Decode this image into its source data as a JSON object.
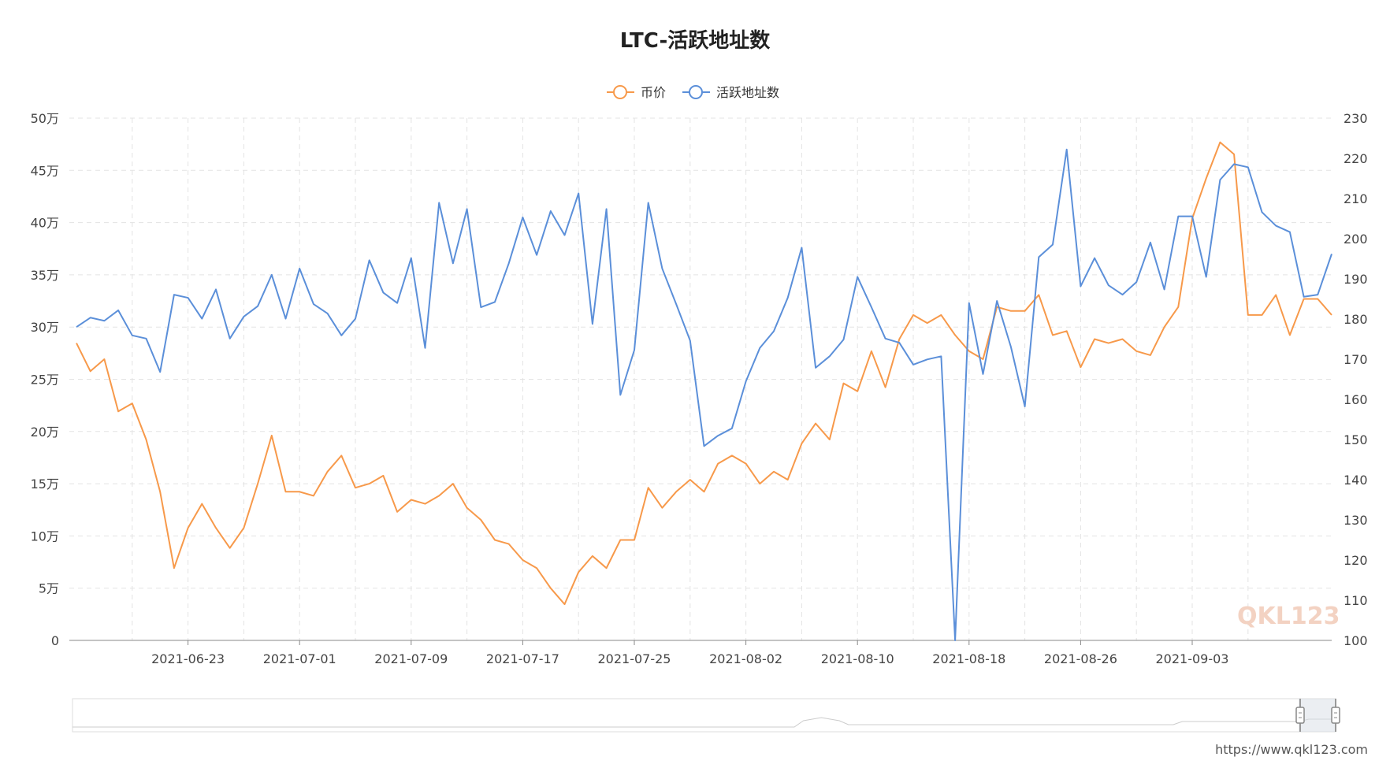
{
  "source_url": "https://www.qkl123.com",
  "watermark": "QKL123",
  "chart_data": {
    "type": "line",
    "title": "LTC-活跃地址数",
    "x_tick_labels": [
      "2021-06-23",
      "2021-07-01",
      "2021-07-09",
      "2021-07-17",
      "2021-07-25",
      "2021-08-02",
      "2021-08-10",
      "2021-08-18",
      "2021-08-26",
      "2021-09-03"
    ],
    "y_left_ticks": [
      "0",
      "5万",
      "10万",
      "15万",
      "20万",
      "25万",
      "30万",
      "35万",
      "40万",
      "45万",
      "50万"
    ],
    "y_right_ticks": [
      "100",
      "110",
      "120",
      "130",
      "140",
      "150",
      "160",
      "170",
      "180",
      "190",
      "200",
      "210",
      "220",
      "230"
    ],
    "y_left_range": [
      0,
      500000
    ],
    "y_right_range": [
      100,
      230
    ],
    "grid": true,
    "legend_position": "top-center",
    "series": [
      {
        "name": "币价",
        "axis": "right",
        "color": "#f7994a",
        "values": [
          174,
          167,
          170,
          157,
          159,
          150,
          137,
          118,
          128,
          134,
          128,
          123,
          128,
          139,
          151,
          137,
          137,
          136,
          142,
          146,
          138,
          139,
          141,
          132,
          135,
          134,
          136,
          139,
          133,
          130,
          125,
          124,
          120,
          118,
          113,
          109,
          117,
          121,
          118,
          125,
          125,
          138,
          133,
          137,
          140,
          137,
          144,
          146,
          144,
          139,
          142,
          140,
          149,
          154,
          150,
          164,
          162,
          172,
          163,
          175,
          181,
          179,
          181,
          176,
          172,
          170,
          183,
          182,
          182,
          186,
          176,
          177,
          168,
          175,
          174,
          175,
          172,
          171,
          178,
          183,
          205,
          215,
          224,
          221,
          181,
          181,
          186,
          176,
          185,
          185,
          181
        ]
      },
      {
        "name": "活跃地址数",
        "axis": "left",
        "color": "#5b8fd9",
        "values": [
          300000,
          309000,
          306000,
          316000,
          292000,
          289000,
          257000,
          331000,
          328000,
          308000,
          336000,
          289000,
          310000,
          320000,
          350000,
          308000,
          356000,
          322000,
          313000,
          292000,
          308000,
          364000,
          333000,
          323000,
          366000,
          280000,
          419000,
          361000,
          413000,
          319000,
          324000,
          361000,
          405000,
          369000,
          411000,
          388000,
          428000,
          303000,
          413000,
          235000,
          278000,
          419000,
          356000,
          322000,
          287000,
          186000,
          196000,
          203000,
          248000,
          280000,
          296000,
          328000,
          376000,
          261000,
          272000,
          288000,
          348000,
          319000,
          289000,
          285000,
          264000,
          269000,
          272000,
          0,
          323000,
          255000,
          325000,
          281000,
          224000,
          367000,
          379000,
          470000,
          339000,
          366000,
          340000,
          331000,
          343000,
          381000,
          336000,
          406000,
          406000,
          348000,
          441000,
          456000,
          453000,
          410000,
          397000,
          391000,
          329000,
          331000,
          370000
        ]
      }
    ]
  }
}
